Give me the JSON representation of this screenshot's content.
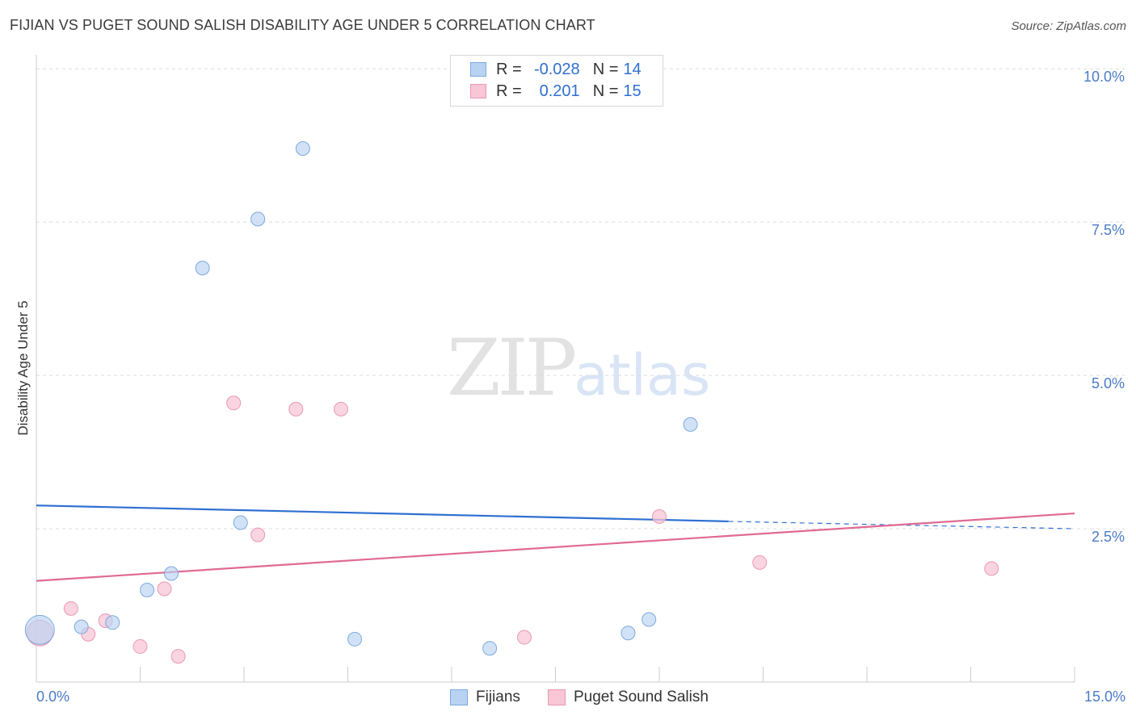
{
  "header": {
    "title": "FIJIAN VS PUGET SOUND SALISH DISABILITY AGE UNDER 5 CORRELATION CHART",
    "source": "Source: ZipAtlas.com"
  },
  "watermark": {
    "zip": "ZIP",
    "atlas": "atlas"
  },
  "legend": {
    "rows": [
      {
        "r_label": "R =",
        "r_value": "-0.028",
        "n_label": "N =",
        "n_value": "14"
      },
      {
        "r_label": "R =",
        "r_value": "0.201",
        "n_label": "N =",
        "n_value": "15"
      }
    ]
  },
  "bottom_legend": {
    "fijians": "Fijians",
    "puget": "Puget Sound Salish"
  },
  "colors": {
    "fijians_fill": "#b8d3f2",
    "fijians_stroke": "#7ea9de",
    "fijians_line": "#2f6fd1",
    "puget_fill": "#f8c6d5",
    "puget_stroke": "#e999b2",
    "puget_line": "#e06a93",
    "tick_text": "#4a7cc7",
    "grid": "#dddddd"
  },
  "chart_data": {
    "type": "scatter",
    "title": "FIJIAN VS PUGET SOUND SALISH DISABILITY AGE UNDER 5 CORRELATION CHART",
    "xlabel": "",
    "ylabel": "Disability Age Under 5",
    "xlim": [
      0,
      15
    ],
    "ylim": [
      0,
      10.2
    ],
    "x_tick_labels": [
      "0.0%",
      "15.0%"
    ],
    "y_ticks": [
      2.5,
      5.0,
      7.5,
      10.0
    ],
    "y_tick_labels": [
      "2.5%",
      "5.0%",
      "7.5%",
      "10.0%"
    ],
    "grid": true,
    "legend_position": "top-center",
    "series": [
      {
        "name": "Fijians",
        "points": [
          [
            0.05,
            0.85
          ],
          [
            0.65,
            0.9
          ],
          [
            1.1,
            0.97
          ],
          [
            1.6,
            1.5
          ],
          [
            1.95,
            1.77
          ],
          [
            2.4,
            6.75
          ],
          [
            2.95,
            2.6
          ],
          [
            3.2,
            7.55
          ],
          [
            3.85,
            8.7
          ],
          [
            4.6,
            0.7
          ],
          [
            6.55,
            0.55
          ],
          [
            8.55,
            0.8
          ],
          [
            8.85,
            1.02
          ],
          [
            9.45,
            4.2
          ]
        ],
        "trend": {
          "x0": 0,
          "y0": 2.88,
          "x1": 10,
          "y1": 2.62,
          "dashed_to": 15,
          "y_end": 2.5
        }
      },
      {
        "name": "Puget Sound Salish",
        "points": [
          [
            0.05,
            0.8
          ],
          [
            0.5,
            1.2
          ],
          [
            0.75,
            0.78
          ],
          [
            1.0,
            1.0
          ],
          [
            1.5,
            0.58
          ],
          [
            1.85,
            1.52
          ],
          [
            2.05,
            0.42
          ],
          [
            2.85,
            4.55
          ],
          [
            3.2,
            2.4
          ],
          [
            3.75,
            4.45
          ],
          [
            4.4,
            4.45
          ],
          [
            7.05,
            0.73
          ],
          [
            9.0,
            2.7
          ],
          [
            10.45,
            1.95
          ],
          [
            13.8,
            1.85
          ]
        ],
        "trend": {
          "x0": 0,
          "y0": 1.65,
          "x1": 15,
          "y1": 2.75
        }
      }
    ]
  }
}
